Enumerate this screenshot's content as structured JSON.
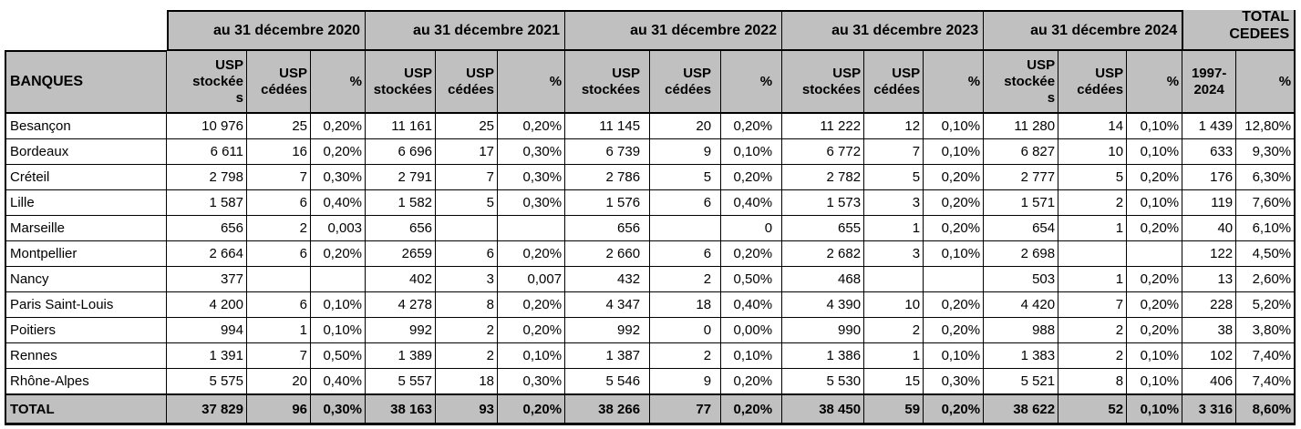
{
  "table": {
    "banques_header": "BANQUES",
    "year_groups": [
      {
        "label": "au 31 décembre 2020",
        "cols": [
          "USP\nstockée\ns",
          "USP\ncédées",
          "%"
        ]
      },
      {
        "label": "au 31 décembre 2021",
        "cols": [
          "USP\nstockées",
          "USP\ncédées",
          "%"
        ]
      },
      {
        "label": "au 31 décembre 2022",
        "cols": [
          "USP\nstockées",
          "USP\ncédées",
          "%"
        ]
      },
      {
        "label": "au 31 décembre 2023",
        "cols": [
          "USP\nstockées",
          "USP\ncédées",
          "%"
        ]
      },
      {
        "label": "au 31 décembre 2024",
        "cols": [
          "USP\nstockée\ns",
          "USP\ncédées",
          "%"
        ]
      }
    ],
    "total_group": {
      "label": "TOTAL\nCEDEES",
      "cols": [
        "1997-\n2024",
        "%"
      ]
    },
    "rows": [
      {
        "name": "Besançon",
        "cells": [
          "10 976",
          "25",
          "0,20%",
          "11 161",
          "25",
          "0,20%",
          "11 145",
          "20",
          "0,20%",
          "11 222",
          "12",
          "0,10%",
          "11 280",
          "14",
          "0,10%",
          "1 439",
          "12,80%"
        ]
      },
      {
        "name": "Bordeaux",
        "cells": [
          "6 611",
          "16",
          "0,20%",
          "6 696",
          "17",
          "0,30%",
          "6 739",
          "9",
          "0,10%",
          "6 772",
          "7",
          "0,10%",
          "6 827",
          "10",
          "0,10%",
          "633",
          "9,30%"
        ]
      },
      {
        "name": "Créteil",
        "cells": [
          "2 798",
          "7",
          "0,30%",
          "2 791",
          "7",
          "0,30%",
          "2 786",
          "5",
          "0,20%",
          "2 782",
          "5",
          "0,20%",
          "2 777",
          "5",
          "0,20%",
          "176",
          "6,30%"
        ]
      },
      {
        "name": "Lille",
        "cells": [
          "1 587",
          "6",
          "0,40%",
          "1 582",
          "5",
          "0,30%",
          "1 576",
          "6",
          "0,40%",
          "1 573",
          "3",
          "0,20%",
          "1 571",
          "2",
          "0,10%",
          "119",
          "7,60%"
        ]
      },
      {
        "name": "Marseille",
        "cells": [
          "656",
          "2",
          "0,003",
          "656",
          "",
          "",
          "656",
          "",
          "0",
          "655",
          "1",
          "0,20%",
          "654",
          "1",
          "0,20%",
          "40",
          "6,10%"
        ]
      },
      {
        "name": "Montpellier",
        "cells": [
          "2 664",
          "6",
          "0,20%",
          "2659",
          "6",
          "0,20%",
          "2 660",
          "6",
          "0,20%",
          "2 682",
          "3",
          "0,10%",
          "2 698",
          "",
          "",
          "122",
          "4,50%"
        ]
      },
      {
        "name": "Nancy",
        "cells": [
          "377",
          "",
          "",
          "402",
          "3",
          "0,007",
          "432",
          "2",
          "0,50%",
          "468",
          "",
          "",
          "503",
          "1",
          "0,20%",
          "13",
          "2,60%"
        ]
      },
      {
        "name": "Paris Saint-Louis",
        "cells": [
          "4 200",
          "6",
          "0,10%",
          "4 278",
          "8",
          "0,20%",
          "4 347",
          "18",
          "0,40%",
          "4 390",
          "10",
          "0,20%",
          "4 420",
          "7",
          "0,20%",
          "228",
          "5,20%"
        ]
      },
      {
        "name": "Poitiers",
        "cells": [
          "994",
          "1",
          "0,10%",
          "992",
          "2",
          "0,20%",
          "992",
          "0",
          "0,00%",
          "990",
          "2",
          "0,20%",
          "988",
          "2",
          "0,20%",
          "38",
          "3,80%"
        ]
      },
      {
        "name": "Rennes",
        "cells": [
          "1 391",
          "7",
          "0,50%",
          "1 389",
          "2",
          "0,10%",
          "1 387",
          "2",
          "0,10%",
          "1 386",
          "1",
          "0,10%",
          "1 383",
          "2",
          "0,10%",
          "102",
          "7,40%"
        ]
      },
      {
        "name": "Rhône-Alpes",
        "cells": [
          "5 575",
          "20",
          "0,40%",
          "5 557",
          "18",
          "0,30%",
          "5 546",
          "9",
          "0,20%",
          "5 530",
          "15",
          "0,30%",
          "5 521",
          "8",
          "0,10%",
          "406",
          "7,40%"
        ]
      }
    ],
    "total_row": {
      "name": "TOTAL",
      "cells": [
        "37 829",
        "96",
        "0,30%",
        "38 163",
        "93",
        "0,20%",
        "38 266",
        "77",
        "0,20%",
        "38 450",
        "59",
        "0,20%",
        "38 622",
        "52",
        "0,10%",
        "3 316",
        "8,60%"
      ]
    }
  },
  "colors": {
    "header_bg": "#c0c0c0",
    "border": "#000000",
    "text": "#000000",
    "cell_bg": "#ffffff"
  }
}
